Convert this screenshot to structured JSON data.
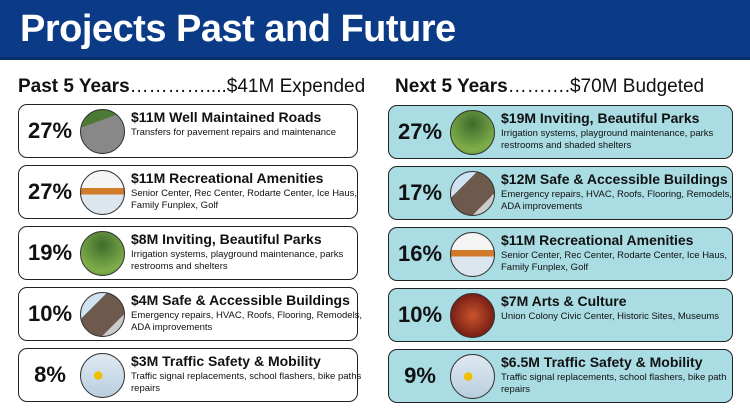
{
  "header": {
    "title": "Projects Past and Future"
  },
  "past": {
    "label": "Past 5 Years",
    "dots": "…………....",
    "amount": "$41M Expended",
    "items": [
      {
        "pct": "27%",
        "title": "$11M Well Maintained Roads",
        "desc": "Transfers for pavement repairs and maintenance",
        "image": "roads"
      },
      {
        "pct": "27%",
        "title": "$11M Recreational Amenities",
        "desc": "Senior Center, Rec Center, Rodarte Center, Ice Haus, Family Funplex, Golf",
        "image": "rec"
      },
      {
        "pct": "19%",
        "title": "$8M Inviting, Beautiful Parks",
        "desc": "Irrigation systems, playground maintenance, parks restrooms and shelters",
        "image": "parks"
      },
      {
        "pct": "10%",
        "title": "$4M Safe & Accessible Buildings",
        "desc": "Emergency repairs, HVAC, Roofs, Flooring, Remodels, ADA improvements",
        "image": "bldg"
      },
      {
        "pct": "8%",
        "title": "$3M Traffic Safety & Mobility",
        "desc": "Traffic signal replacements, school flashers, bike paths repairs",
        "image": "traffic"
      }
    ]
  },
  "next": {
    "label": "Next 5 Years",
    "dots": "……….",
    "amount": "$70M Budgeted",
    "items": [
      {
        "pct": "27%",
        "title": "$19M Inviting, Beautiful Parks",
        "desc": "Irrigation systems, playground maintenance, parks restrooms and shaded shelters",
        "image": "parks"
      },
      {
        "pct": "17%",
        "title": "$12M Safe & Accessible Buildings",
        "desc": "Emergency repairs, HVAC, Roofs, Flooring, Remodels, ADA improvements",
        "image": "bldg"
      },
      {
        "pct": "16%",
        "title": "$11M Recreational Amenities",
        "desc": "Senior Center, Rec Center, Rodarte Center, Ice Haus, Family Funplex, Golf",
        "image": "rec"
      },
      {
        "pct": "10%",
        "title": "$7M Arts & Culture",
        "desc": "Union Colony Civic Center, Historic Sites, Museums",
        "image": "arts"
      },
      {
        "pct": "9%",
        "title": "$6.5M Traffic Safety & Mobility",
        "desc": "Traffic signal replacements, school flashers, bike path repairs",
        "image": "traffic"
      }
    ]
  },
  "colors": {
    "header": "#0b3a86",
    "next_card": "#a9dce3"
  }
}
